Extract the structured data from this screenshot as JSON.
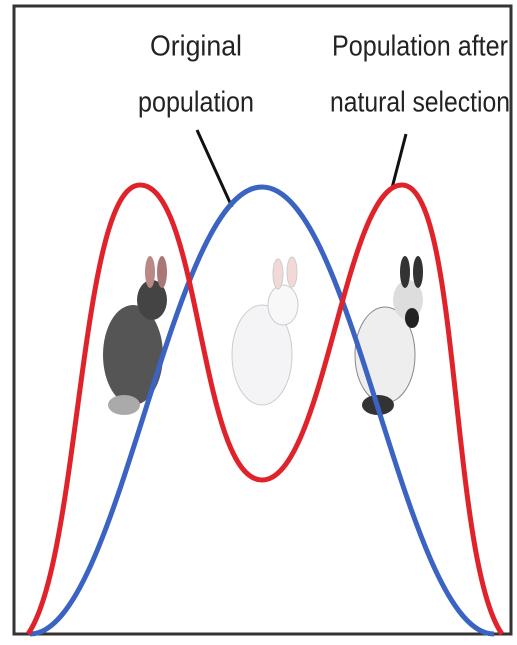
{
  "labels": [
    {
      "lines": [
        "Original",
        "population"
      ]
    },
    {
      "lines": [
        "Population after",
        "natural selection"
      ]
    }
  ]
}
